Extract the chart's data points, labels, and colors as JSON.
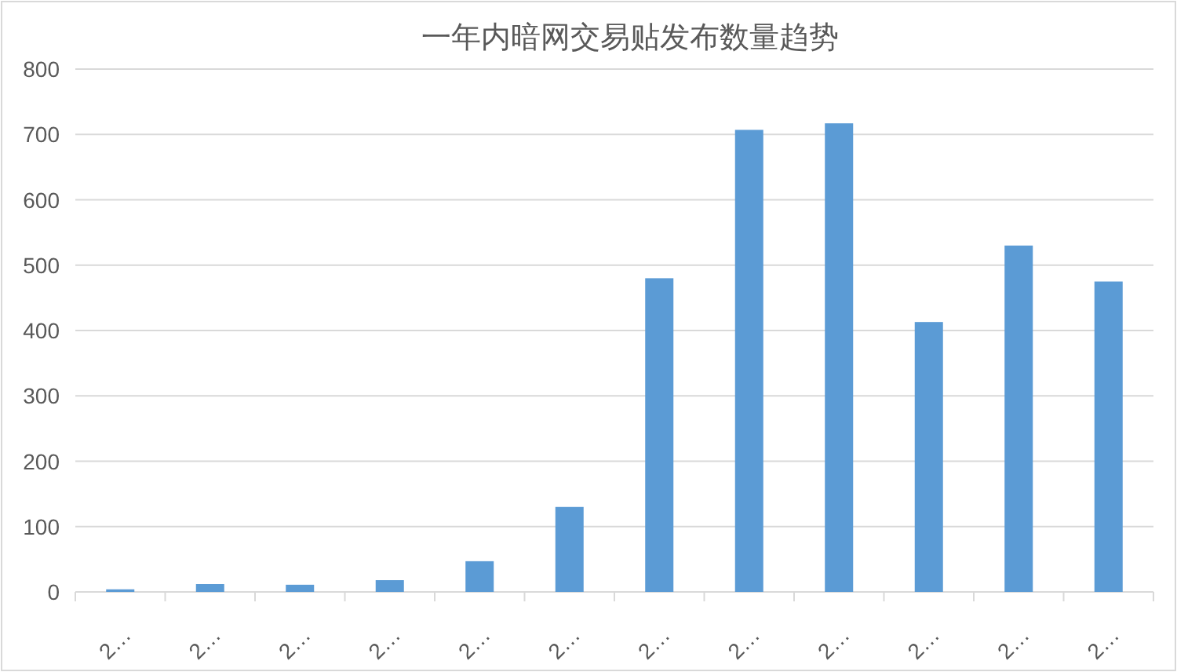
{
  "chart_data": {
    "type": "bar",
    "title": "一年内暗网交易贴发布数量趋势",
    "categories": [
      "2…",
      "2…",
      "2…",
      "2…",
      "2…",
      "2…",
      "2…",
      "2…",
      "2…",
      "2…",
      "2…",
      "2…"
    ],
    "values": [
      4,
      12,
      11,
      18,
      47,
      130,
      480,
      707,
      717,
      413,
      530,
      475
    ],
    "color": "#5b9bd5",
    "ylim": [
      0,
      800
    ],
    "yticks": [
      0,
      100,
      200,
      300,
      400,
      500,
      600,
      700,
      800
    ],
    "grid": "y"
  }
}
